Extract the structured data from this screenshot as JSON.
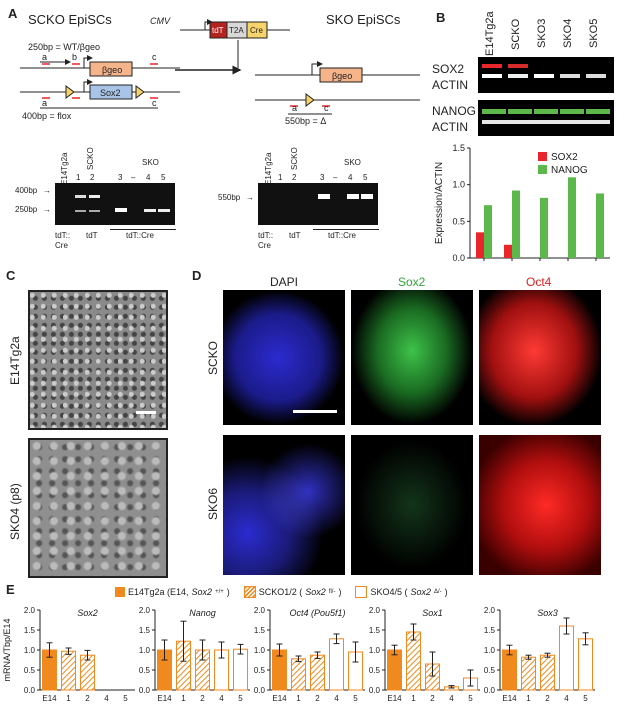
{
  "panel_a": {
    "letter": "A",
    "scko_title": "SCKO EpiSCs",
    "sko_title": "SKO EpiSCs",
    "wt_label": "250bp = WT/βgeo",
    "flox_label": "400bp = flox",
    "delta_label": "550bp = Δ",
    "bgeo": "βgeo",
    "sox2": "Sox2",
    "cmv": "CMV",
    "tdT": "tdT",
    "t2a": "T2A",
    "cre": "Cre",
    "primer_a": "a",
    "primer_b": "b",
    "primer_c": "c",
    "gel1": {
      "lanes_top": [
        "E14Tg2a",
        "SCKO",
        "SKO"
      ],
      "lane_nums": [
        "1",
        "2",
        "3",
        "–",
        "4",
        "5"
      ],
      "size_400": "400bp",
      "size_250": "250bp",
      "bottom": [
        "tdT::",
        "Cre",
        "tdT",
        "tdT::Cre"
      ]
    },
    "gel2": {
      "lanes_top": [
        "E14Tg2a",
        "SCKO",
        "SKO"
      ],
      "lane_nums": [
        "1",
        "2",
        "3",
        "–",
        "4",
        "5"
      ],
      "size_550": "550bp",
      "bottom": [
        "tdT::",
        "Cre",
        "tdT",
        "tdT::Cre"
      ]
    }
  },
  "panel_b": {
    "letter": "B",
    "lanes": [
      "E14Tg2a",
      "SCKO",
      "SKO3",
      "SKO4",
      "SKO5"
    ],
    "sox2": "SOX2",
    "nanog": "NANOG",
    "actin": "ACTIN",
    "colors": {
      "sox2": "#e8262b",
      "nanog": "#5cb84a"
    }
  },
  "panel_c": {
    "letter": "C",
    "top": "E14Tg2a",
    "bottom": "SKO4 (p8)"
  },
  "panel_d": {
    "letter": "D",
    "cols": [
      "DAPI",
      "Sox2",
      "Oct4"
    ],
    "rows": [
      "SCKO",
      "SKO6"
    ],
    "colors": {
      "dapi": "#2b2bd0",
      "sox2": "#2ea836",
      "oct4": "#e0201e"
    }
  },
  "panel_e": {
    "letter": "E",
    "legend": [
      {
        "name": "E14Tg2a (E14, ",
        "sup": "Sox2",
        "tail": "+/+",
        "close": ")",
        "style": "solid"
      },
      {
        "name": "SCKO1/2 (",
        "sup": "Sox2",
        "tail": "fl/-",
        "close": ")",
        "style": "hatch"
      },
      {
        "name": "SKO4/5 (",
        "sup": "Sox2",
        "tail": "Δ/-",
        "close": ")",
        "style": "open"
      }
    ],
    "color": "#f08a1f"
  },
  "chart_data": [
    {
      "type": "bar",
      "title": "",
      "xlabel": "",
      "ylabel": "Expression/ACTIN",
      "ylim": [
        0,
        1.5
      ],
      "yticks": [
        "0.0",
        "0.5",
        "1.0",
        "1.5"
      ],
      "categories": [
        "E14Tg2a",
        "SCKO",
        "SKO3",
        "SKO4",
        "SKO5"
      ],
      "series": [
        {
          "name": "SOX2",
          "values": [
            0.35,
            0.18,
            0.0,
            0.0,
            0.0
          ]
        },
        {
          "name": "NANOG",
          "values": [
            0.72,
            0.92,
            0.82,
            1.1,
            0.88
          ]
        }
      ],
      "legend": "top-right"
    },
    {
      "type": "bar",
      "title": "Sox2",
      "ylabel": "mRNA/Tbp/E14",
      "ylim": [
        0,
        2.0
      ],
      "yticks": [
        "0.0",
        "0.5",
        "1.0",
        "1.5",
        "2.0"
      ],
      "categories": [
        "E14",
        "1",
        "2",
        "4",
        "5"
      ],
      "values": [
        1.0,
        0.97,
        0.87,
        0.0,
        0.0
      ],
      "errors": [
        0.18,
        0.08,
        0.12,
        0,
        0
      ]
    },
    {
      "type": "bar",
      "title": "Nanog",
      "ylim": [
        0,
        2.0
      ],
      "yticks": [
        "0.0",
        "0.5",
        "1.0",
        "1.5",
        "2.0"
      ],
      "categories": [
        "E14",
        "1",
        "2",
        "4",
        "5"
      ],
      "values": [
        1.0,
        1.22,
        1.0,
        1.0,
        1.02
      ],
      "errors": [
        0.25,
        0.5,
        0.25,
        0.2,
        0.12
      ]
    },
    {
      "type": "bar",
      "title": "Oct4 (Pou5f1)",
      "ylim": [
        0,
        2.0
      ],
      "yticks": [
        "0.0",
        "0.5",
        "1.0",
        "1.5",
        "2.0"
      ],
      "categories": [
        "E14",
        "1",
        "2",
        "4",
        "5"
      ],
      "values": [
        1.0,
        0.78,
        0.87,
        1.28,
        0.95
      ],
      "errors": [
        0.15,
        0.07,
        0.08,
        0.12,
        0.25
      ]
    },
    {
      "type": "bar",
      "title": "Sox1",
      "ylim": [
        0,
        2.0
      ],
      "yticks": [
        "0.0",
        "0.5",
        "1.0",
        "1.5",
        "2.0"
      ],
      "categories": [
        "E14",
        "1",
        "2",
        "4",
        "5"
      ],
      "values": [
        1.0,
        1.45,
        0.65,
        0.08,
        0.3
      ],
      "errors": [
        0.12,
        0.2,
        0.3,
        0.03,
        0.2
      ]
    },
    {
      "type": "bar",
      "title": "Sox3",
      "ylim": [
        0,
        2.0
      ],
      "yticks": [
        "0.0",
        "0.5",
        "1.0",
        "1.5",
        "2.0"
      ],
      "categories": [
        "E14",
        "1",
        "2",
        "4",
        "5"
      ],
      "values": [
        1.0,
        0.82,
        0.87,
        1.6,
        1.28
      ],
      "errors": [
        0.12,
        0.05,
        0.05,
        0.2,
        0.15
      ]
    }
  ]
}
